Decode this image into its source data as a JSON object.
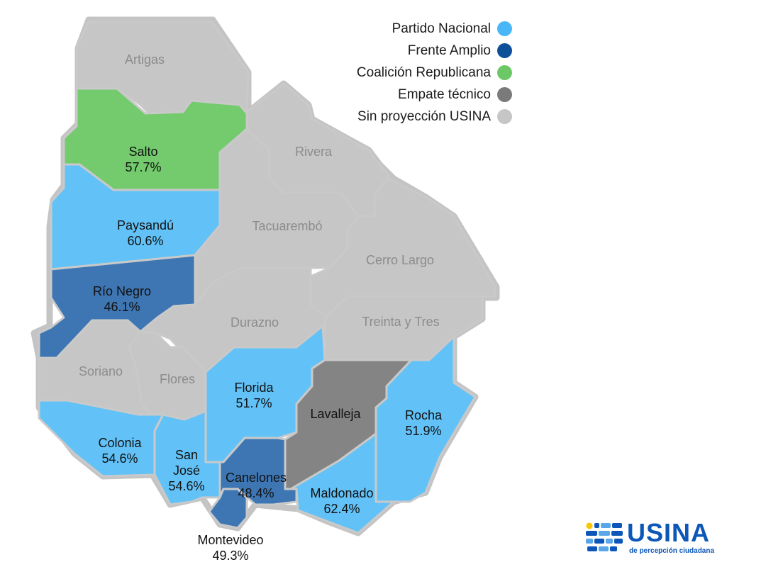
{
  "colors": {
    "partido_nacional": "#62c2f7",
    "frente_amplio": "#3d76b3",
    "coalicion": "#73cb6e",
    "empate": "#848484",
    "sin_proyeccion": "#c6c6c6",
    "border": "#c6c6c6",
    "logo_blue": "#0d57b8",
    "logo_yellow": "#f7c600"
  },
  "legend": [
    {
      "label": "Partido Nacional",
      "color": "#49b7f7"
    },
    {
      "label": "Frente Amplio",
      "color": "#0e4f9a"
    },
    {
      "label": "Coalición Republicana",
      "color": "#6cc866"
    },
    {
      "label": "Empate técnico",
      "color": "#7a7a7a"
    },
    {
      "label": "Sin proyección USINA",
      "color": "#c6c6c6"
    }
  ],
  "departments": [
    {
      "name": "Artigas",
      "value": "",
      "result": "Sin proyección USINA"
    },
    {
      "name": "Salto",
      "value": "57.7%",
      "result": "Coalición Republicana"
    },
    {
      "name": "Rivera",
      "value": "",
      "result": "Sin proyección USINA"
    },
    {
      "name": "Paysandú",
      "value": "60.6%",
      "result": "Partido Nacional"
    },
    {
      "name": "Tacuarembó",
      "value": "",
      "result": "Sin proyección USINA"
    },
    {
      "name": "Cerro Largo",
      "value": "",
      "result": "Sin proyección USINA"
    },
    {
      "name": "Río Negro",
      "value": "46.1%",
      "result": "Frente Amplio"
    },
    {
      "name": "Durazno",
      "value": "",
      "result": "Sin proyección USINA"
    },
    {
      "name": "Treinta y Tres",
      "value": "",
      "result": "Sin proyección USINA"
    },
    {
      "name": "Soriano",
      "value": "",
      "result": "Sin proyección USINA"
    },
    {
      "name": "Flores",
      "value": "",
      "result": "Sin proyección USINA"
    },
    {
      "name": "Florida",
      "value": "51.7%",
      "result": "Partido Nacional"
    },
    {
      "name": "Lavalleja",
      "value": "",
      "result": "Empate técnico"
    },
    {
      "name": "Rocha",
      "value": "51.9%",
      "result": "Partido Nacional"
    },
    {
      "name": "Colonia",
      "value": "54.6%",
      "result": "Partido Nacional"
    },
    {
      "name": "San José",
      "value": "54.6%",
      "result": "Partido Nacional"
    },
    {
      "name": "Canelones",
      "value": "48.4%",
      "result": "Frente Amplio"
    },
    {
      "name": "Maldonado",
      "value": "62.4%",
      "result": "Partido Nacional"
    },
    {
      "name": "Montevideo",
      "value": "49.3%",
      "result": "Frente Amplio"
    }
  ],
  "logo": {
    "word": "USINA",
    "subtitle": "de percepción ciudadana"
  }
}
